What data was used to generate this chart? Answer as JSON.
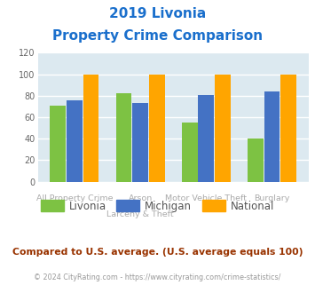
{
  "title_line1": "2019 Livonia",
  "title_line2": "Property Crime Comparison",
  "title_color": "#1a6fcc",
  "category_labels_top": [
    "",
    "Arson",
    "Motor Vehicle Theft",
    ""
  ],
  "category_labels_bottom": [
    "All Property Crime",
    "Larceny & Theft",
    "",
    "Burglary"
  ],
  "livonia": [
    71,
    82,
    55,
    40
  ],
  "michigan": [
    76,
    73,
    81,
    84
  ],
  "national": [
    100,
    100,
    100,
    100
  ],
  "livonia_color": "#7dc243",
  "michigan_color": "#4472c4",
  "national_color": "#ffa500",
  "ylim": [
    0,
    120
  ],
  "yticks": [
    0,
    20,
    40,
    60,
    80,
    100,
    120
  ],
  "grid_color": "#ffffff",
  "bg_color": "#dce9f0",
  "legend_labels": [
    "Livonia",
    "Michigan",
    "National"
  ],
  "footnote1": "Compared to U.S. average. (U.S. average equals 100)",
  "footnote1_color": "#993300",
  "footnote2": "© 2024 CityRating.com - https://www.cityrating.com/crime-statistics/",
  "footnote2_color": "#999999"
}
